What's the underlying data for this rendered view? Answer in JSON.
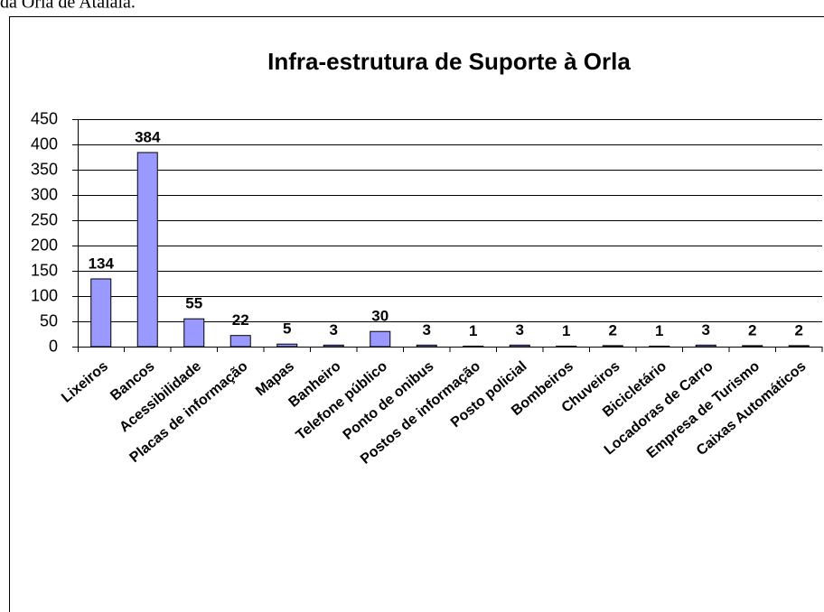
{
  "header_text": "da Orla de Atalaia.",
  "chart_data": {
    "type": "bar",
    "title": "Infra-estrutura de Suporte à Orla",
    "categories": [
      "Lixeiros",
      "Bancos",
      "Acessibilidade",
      "Placas de informação",
      "Mapas",
      "Banheiro",
      "Telefone público",
      "Ponto de onibus",
      "Postos de informação",
      "Posto policial",
      "Bombeiros",
      "Chuveiros",
      "Bicicletário",
      "Locadoras de Carro",
      "Empresa de Turismo",
      "Caixas Automáticos"
    ],
    "values": [
      134,
      384,
      55,
      22,
      5,
      3,
      30,
      3,
      1,
      3,
      1,
      2,
      1,
      3,
      2,
      2
    ],
    "color": "#9999ff",
    "ylim": [
      0,
      450
    ],
    "yticks": [
      0,
      50,
      100,
      150,
      200,
      250,
      300,
      350,
      400,
      450
    ],
    "grid": true
  }
}
